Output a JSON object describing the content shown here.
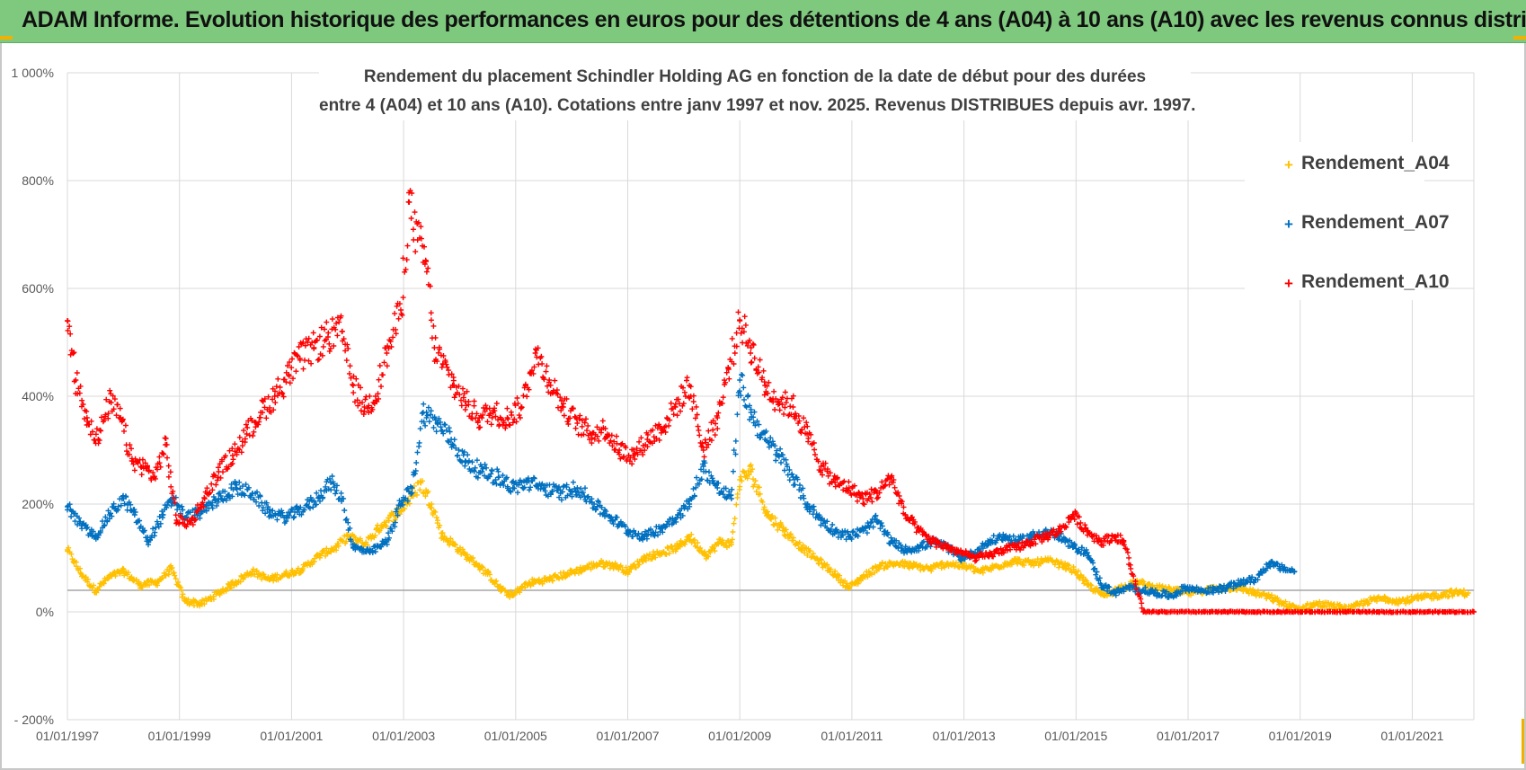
{
  "header": {
    "title": "ADAM Informe. Evolution historique des performances en euros pour des détentions de 4 ans (A04) à 10 ans (A10) avec les revenus connus distribués"
  },
  "colors": {
    "header_bg": "#7fc97f",
    "a04": "#ffc000",
    "a07": "#0070c0",
    "a10": "#ff0000",
    "grid": "#d9d9d9",
    "zero_line": "#a6a6a6"
  },
  "chart_data": {
    "type": "scatter",
    "title_lines": [
      "Rendement du placement Schindler Holding AG en fonction de la date de début pour des durées",
      "entre 4 (A04) et 10 ans (A10).  Cotations entre janv 1997 et nov. 2025. Revenus DISTRIBUES depuis avr. 1997."
    ],
    "xlabel": "",
    "ylabel": "",
    "x_range": [
      1997.0,
      2022.1
    ],
    "ylim": [
      -200,
      1000
    ],
    "y_ticks": [
      -200,
      0,
      200,
      400,
      600,
      800,
      1000
    ],
    "y_tick_labels": [
      "- 200%",
      "0%",
      "200%",
      "400%",
      "600%",
      "800%",
      "1 000%"
    ],
    "x_ticks": [
      1997,
      1999,
      2001,
      2003,
      2005,
      2007,
      2009,
      2011,
      2013,
      2015,
      2017,
      2019,
      2021
    ],
    "x_tick_labels": [
      "01/01/1997",
      "01/01/1999",
      "01/01/2001",
      "01/01/2003",
      "01/01/2005",
      "01/01/2007",
      "01/01/2009",
      "01/01/2011",
      "01/01/2013",
      "01/01/2015",
      "01/01/2017",
      "01/01/2019",
      "01/01/2021"
    ],
    "reference_line_y": 40,
    "legend_position": "right",
    "series": [
      {
        "name": "Rendement_A04",
        "color": "#ffc000",
        "x": [
          1997.0,
          1997.25,
          1997.5,
          1997.75,
          1998.0,
          1998.3,
          1998.6,
          1998.85,
          1999.1,
          1999.4,
          1999.7,
          2000.0,
          2000.3,
          2000.6,
          2000.9,
          2001.2,
          2001.5,
          2001.8,
          2002.0,
          2002.3,
          2002.6,
          2002.9,
          2003.15,
          2003.3,
          2003.5,
          2003.7,
          2003.9,
          2004.1,
          2004.3,
          2004.5,
          2004.75,
          2004.95,
          2005.1,
          2005.3,
          2005.6,
          2005.9,
          2006.2,
          2006.5,
          2006.8,
          2007.0,
          2007.3,
          2007.6,
          2007.9,
          2008.1,
          2008.4,
          2008.65,
          2008.85,
          2009.0,
          2009.2,
          2009.5,
          2009.8,
          2010.1,
          2010.4,
          2010.7,
          2010.95,
          2011.2,
          2011.5,
          2011.8,
          2012.1,
          2012.4,
          2012.7,
          2013.0,
          2013.3,
          2013.6,
          2013.9,
          2014.2,
          2014.5,
          2014.8,
          2015.0,
          2015.2,
          2015.5,
          2015.8,
          2016.1,
          2016.4,
          2016.7,
          2017.0,
          2017.3,
          2017.6,
          2017.9,
          2018.2,
          2018.5,
          2018.8,
          2019.0,
          2019.3,
          2019.6,
          2019.9,
          2020.2,
          2020.5,
          2020.8,
          2021.1,
          2021.4,
          2021.7,
          2022.0
        ],
        "values": [
          115,
          70,
          40,
          65,
          75,
          50,
          55,
          80,
          20,
          15,
          35,
          55,
          75,
          60,
          70,
          80,
          105,
          120,
          140,
          125,
          160,
          185,
          215,
          240,
          200,
          140,
          125,
          105,
          90,
          70,
          40,
          30,
          45,
          55,
          60,
          70,
          80,
          90,
          85,
          75,
          100,
          110,
          120,
          140,
          105,
          130,
          125,
          245,
          260,
          180,
          150,
          120,
          95,
          70,
          45,
          65,
          85,
          90,
          85,
          80,
          90,
          85,
          75,
          85,
          95,
          90,
          95,
          85,
          75,
          50,
          30,
          45,
          55,
          45,
          40,
          35,
          40,
          45,
          45,
          35,
          25,
          10,
          5,
          15,
          10,
          5,
          20,
          25,
          20,
          25,
          30,
          35,
          35
        ]
      },
      {
        "name": "Rendement_A07",
        "color": "#0070c0",
        "x": [
          1997.0,
          1997.25,
          1997.5,
          1997.75,
          1998.0,
          1998.2,
          1998.45,
          1998.7,
          1998.9,
          1999.1,
          1999.4,
          1999.7,
          2000.0,
          2000.3,
          2000.6,
          2000.9,
          2001.1,
          2001.4,
          2001.7,
          2001.9,
          2002.1,
          2002.4,
          2002.7,
          2002.95,
          2003.15,
          2003.35,
          2003.6,
          2003.85,
          2004.1,
          2004.4,
          2004.7,
          2004.95,
          2005.2,
          2005.5,
          2005.8,
          2006.1,
          2006.4,
          2006.7,
          2007.0,
          2007.3,
          2007.6,
          2007.9,
          2008.1,
          2008.35,
          2008.6,
          2008.85,
          2009.0,
          2009.2,
          2009.45,
          2009.7,
          2009.95,
          2010.2,
          2010.45,
          2010.7,
          2010.95,
          2011.2,
          2011.45,
          2011.7,
          2011.95,
          2012.2,
          2012.45,
          2012.7,
          2012.95,
          2013.2,
          2013.45,
          2013.7,
          2013.95,
          2014.2,
          2014.45,
          2014.7,
          2014.95,
          2015.2,
          2015.45,
          2015.7,
          2015.95,
          2016.2,
          2016.45,
          2016.7,
          2016.95,
          2017.2,
          2017.45,
          2017.7,
          2017.95,
          2018.2,
          2018.45,
          2018.7,
          2018.9
        ],
        "values": [
          195,
          160,
          140,
          180,
          210,
          180,
          130,
          180,
          210,
          175,
          185,
          210,
          230,
          220,
          185,
          175,
          185,
          205,
          240,
          210,
          120,
          110,
          130,
          200,
          230,
          370,
          350,
          320,
          280,
          260,
          250,
          230,
          240,
          230,
          220,
          230,
          200,
          175,
          150,
          140,
          155,
          180,
          200,
          270,
          230,
          210,
          430,
          370,
          320,
          290,
          250,
          200,
          170,
          150,
          140,
          150,
          170,
          130,
          115,
          120,
          130,
          120,
          100,
          110,
          130,
          140,
          130,
          140,
          150,
          140,
          120,
          110,
          50,
          35,
          45,
          40,
          35,
          30,
          45,
          40,
          40,
          45,
          55,
          60,
          90,
          80,
          75
        ]
      },
      {
        "name": "Rendement_A10",
        "color": "#ff0000",
        "x": [
          1997.0,
          1997.15,
          1997.35,
          1997.55,
          1997.75,
          1997.95,
          1998.15,
          1998.35,
          1998.55,
          1998.75,
          1998.95,
          1999.2,
          1999.45,
          1999.7,
          1999.95,
          2000.2,
          2000.45,
          2000.7,
          2000.95,
          2001.15,
          2001.4,
          2001.65,
          2001.9,
          2002.1,
          2002.3,
          2002.5,
          2002.7,
          2002.95,
          2003.1,
          2003.25,
          2003.4,
          2003.55,
          2003.7,
          2003.9,
          2004.1,
          2004.35,
          2004.6,
          2004.85,
          2005.1,
          2005.35,
          2005.6,
          2005.85,
          2006.1,
          2006.35,
          2006.6,
          2006.85,
          2007.1,
          2007.35,
          2007.6,
          2007.85,
          2008.1,
          2008.35,
          2008.6,
          2008.8,
          2009.0,
          2009.2,
          2009.45,
          2009.7,
          2009.95,
          2010.2,
          2010.45,
          2010.7,
          2010.95,
          2011.2,
          2011.45,
          2011.7,
          2011.95,
          2012.2,
          2012.45,
          2012.7,
          2012.95,
          2013.2,
          2013.45,
          2013.7,
          2013.95,
          2014.2,
          2014.45,
          2014.7,
          2014.95,
          2015.2,
          2015.45,
          2015.7,
          2015.85,
          2016.2,
          2016.8,
          2017.4,
          2018.0,
          2018.6,
          2019.2,
          2019.8,
          2020.4,
          2021.0,
          2021.6,
          2022.1
        ],
        "values": [
          540,
          430,
          360,
          320,
          390,
          360,
          280,
          270,
          250,
          310,
          170,
          165,
          210,
          260,
          290,
          330,
          370,
          400,
          440,
          470,
          490,
          510,
          520,
          420,
          380,
          400,
          480,
          560,
          760,
          690,
          650,
          490,
          460,
          420,
          390,
          360,
          370,
          360,
          380,
          480,
          430,
          380,
          350,
          330,
          340,
          300,
          290,
          320,
          340,
          380,
          420,
          300,
          360,
          450,
          540,
          490,
          420,
          390,
          380,
          330,
          270,
          240,
          230,
          210,
          220,
          250,
          180,
          150,
          130,
          120,
          110,
          100,
          105,
          115,
          120,
          130,
          140,
          150,
          180,
          150,
          130,
          140,
          130,
          0,
          0,
          0,
          0,
          0,
          0,
          0,
          0,
          0,
          0,
          0
        ]
      }
    ]
  }
}
